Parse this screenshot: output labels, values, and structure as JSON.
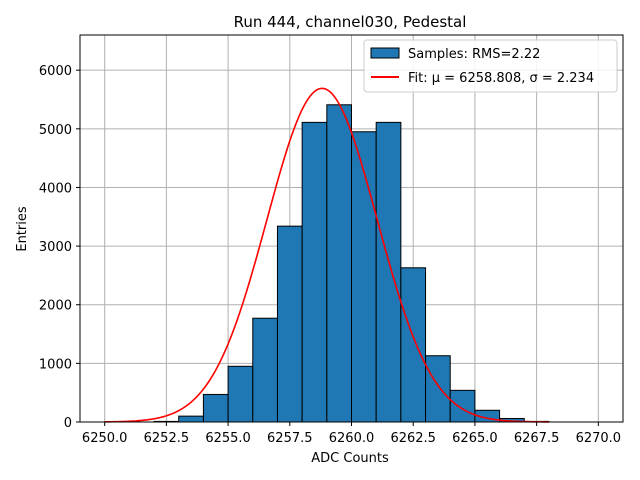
{
  "chart_data": {
    "type": "bar",
    "title": "Run 444, channel030, Pedestal",
    "xlabel": "ADC Counts",
    "ylabel": "Entries",
    "xlim": [
      6249.0,
      6271.0
    ],
    "ylim": [
      0,
      6600
    ],
    "grid": true,
    "legend_position": "top-right",
    "x_ticks": [
      6250.0,
      6252.5,
      6255.0,
      6257.5,
      6260.0,
      6262.5,
      6265.0,
      6267.5,
      6270.0
    ],
    "x_tick_labels": [
      "6250.0",
      "6252.5",
      "6255.0",
      "6257.5",
      "6260.0",
      "6262.5",
      "6265.0",
      "6267.5",
      "6270.0"
    ],
    "y_ticks": [
      0,
      1000,
      2000,
      3000,
      4000,
      5000,
      6000
    ],
    "y_tick_labels": [
      "0",
      "1000",
      "2000",
      "3000",
      "4000",
      "5000",
      "6000"
    ],
    "bar_width": 1,
    "bins": [
      {
        "x": 6252,
        "value": 10
      },
      {
        "x": 6253,
        "value": 100
      },
      {
        "x": 6254,
        "value": 470
      },
      {
        "x": 6255,
        "value": 950
      },
      {
        "x": 6256,
        "value": 1770
      },
      {
        "x": 6257,
        "value": 3340
      },
      {
        "x": 6258,
        "value": 5110
      },
      {
        "x": 6259,
        "value": 5410
      },
      {
        "x": 6260,
        "value": 4950
      },
      {
        "x": 6261,
        "value": 5110
      },
      {
        "x": 6262,
        "value": 2630
      },
      {
        "x": 6263,
        "value": 1130
      },
      {
        "x": 6264,
        "value": 540
      },
      {
        "x": 6265,
        "value": 200
      },
      {
        "x": 6266,
        "value": 60
      },
      {
        "x": 6267,
        "value": 10
      }
    ],
    "fit": {
      "mu": 6258.808,
      "sigma": 2.234,
      "amplitude": 5690,
      "x_range": [
        6250.0,
        6268.0
      ]
    },
    "legend": [
      {
        "label": "Samples: RMS=2.22",
        "kind": "bar"
      },
      {
        "label": "Fit: μ = 6258.808, σ = 2.234",
        "kind": "line"
      }
    ],
    "colors": {
      "bar_fill": "#1f77b4",
      "bar_edge": "#000000",
      "fit_line": "#ff0000",
      "grid": "#b0b0b0"
    }
  }
}
